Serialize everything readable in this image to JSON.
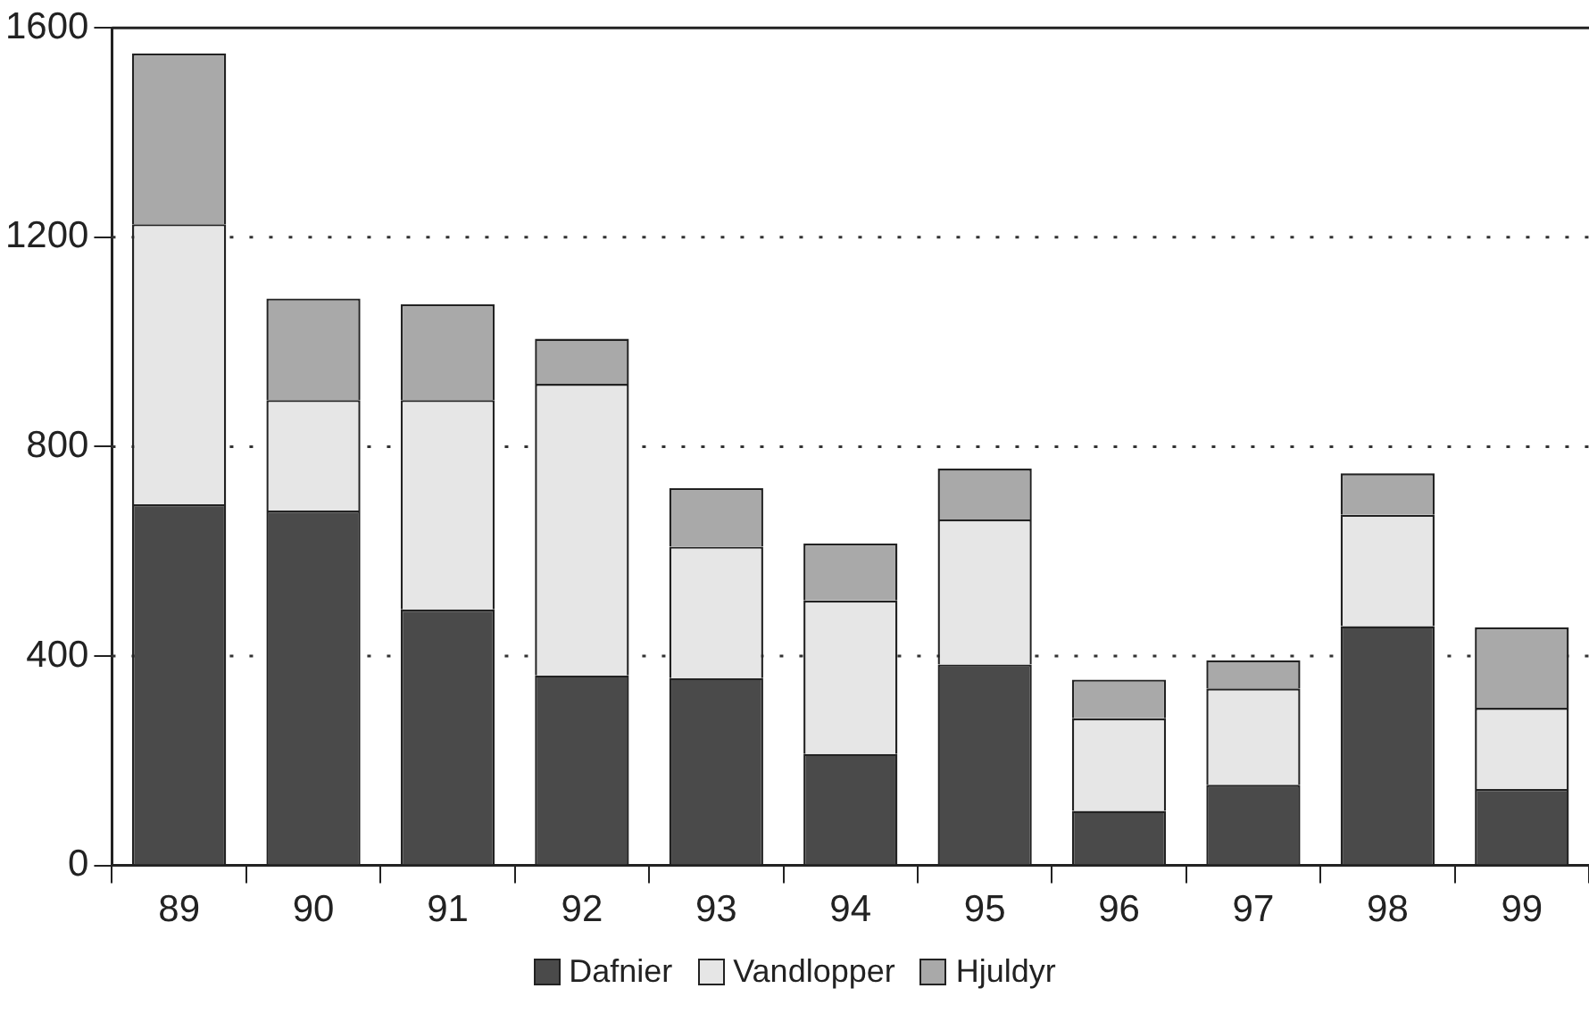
{
  "chart_data": {
    "type": "bar",
    "stacked": true,
    "categories": [
      "89",
      "90",
      "91",
      "92",
      "93",
      "94",
      "95",
      "96",
      "97",
      "98",
      "99"
    ],
    "series": [
      {
        "name": "Dafnier",
        "color": "#4a4a4a",
        "values": [
          690,
          678,
          489,
          363,
          358,
          213,
          384,
          104,
          154,
          457,
          146
        ]
      },
      {
        "name": "Vandlopper",
        "color": "#e6e6e6",
        "values": [
          535,
          211,
          400,
          557,
          251,
          293,
          277,
          177,
          184,
          213,
          155
        ]
      },
      {
        "name": "Hjuldyr",
        "color": "#a9a9a9",
        "values": [
          326,
          194,
          183,
          86,
          112,
          109,
          97,
          74,
          54,
          79,
          154
        ]
      }
    ],
    "ylim": [
      0,
      1600
    ],
    "yticks": [
      0,
      400,
      800,
      1200,
      1600
    ],
    "grid": "y",
    "legend": "bottom"
  }
}
